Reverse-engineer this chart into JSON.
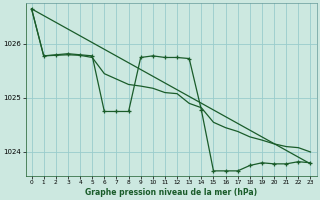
{
  "title": "Graphe pression niveau de la mer (hPa)",
  "bg_color": "#cce8e0",
  "grid_color": "#99cccc",
  "line_color": "#1a5c2a",
  "xlim": [
    -0.5,
    23.5
  ],
  "ylim": [
    1023.55,
    1026.75
  ],
  "yticks": [
    1024,
    1025,
    1026
  ],
  "xticks": [
    0,
    1,
    2,
    3,
    4,
    5,
    6,
    7,
    8,
    9,
    10,
    11,
    12,
    13,
    14,
    15,
    16,
    17,
    18,
    19,
    20,
    21,
    22,
    23
  ],
  "detail_x": [
    0,
    1,
    2,
    3,
    4,
    5,
    6,
    7,
    8,
    9,
    10,
    11,
    12,
    13,
    14,
    15,
    16,
    17,
    18,
    19,
    20,
    21,
    22,
    23
  ],
  "detail_y": [
    1026.65,
    1025.78,
    1025.8,
    1025.82,
    1025.8,
    1025.78,
    1024.75,
    1024.75,
    1024.75,
    1025.75,
    1025.78,
    1025.75,
    1025.75,
    1025.73,
    1024.78,
    1023.65,
    1023.65,
    1023.65,
    1023.75,
    1023.8,
    1023.78,
    1023.78,
    1023.82,
    1023.8
  ],
  "trend_x": [
    0,
    23
  ],
  "trend_y": [
    1026.65,
    1023.78
  ],
  "smooth_x": [
    0,
    1,
    2,
    3,
    4,
    5,
    6,
    7,
    8,
    9,
    10,
    11,
    12,
    13,
    14,
    15,
    16,
    17,
    18,
    19,
    20,
    21,
    22,
    23
  ],
  "smooth_y": [
    1026.65,
    1025.78,
    1025.79,
    1025.8,
    1025.79,
    1025.75,
    1025.45,
    1025.35,
    1025.25,
    1025.22,
    1025.18,
    1025.1,
    1025.08,
    1024.9,
    1024.82,
    1024.55,
    1024.45,
    1024.38,
    1024.28,
    1024.22,
    1024.15,
    1024.1,
    1024.08,
    1024.0
  ]
}
